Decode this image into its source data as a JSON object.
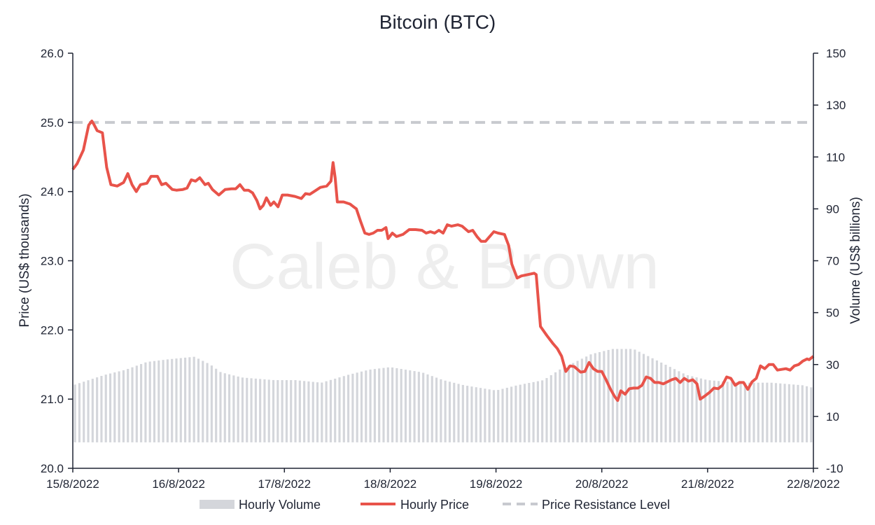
{
  "chart_data": {
    "type": "line",
    "title": "Bitcoin (BTC)",
    "watermark": "Caleb & Brown",
    "ylabel": "Price (US$ thousands)",
    "y2label": "Volume (US$ billions)",
    "xlabel": "",
    "x_ticks": [
      "15/8/2022",
      "16/8/2022",
      "17/8/2022",
      "18/8/2022",
      "19/8/2022",
      "20/8/2022",
      "21/8/2022",
      "22/8/2022"
    ],
    "y_ticks": [
      "20.0",
      "21.0",
      "22.0",
      "23.0",
      "24.0",
      "25.0",
      "26.0"
    ],
    "y2_ticks": [
      "-10",
      "10",
      "30",
      "50",
      "70",
      "90",
      "110",
      "130",
      "150"
    ],
    "ylim": [
      20.0,
      26.0
    ],
    "y2lim": [
      -10,
      150
    ],
    "xlim_days": [
      0,
      7
    ],
    "legend_position": "bottom",
    "grid": false,
    "colors": {
      "price": "#e8534a",
      "volume": "#d4d6db",
      "resistance": "#c8cacf",
      "text": "#1f2433",
      "axis": "#1f2433"
    },
    "series": [
      {
        "name": "Hourly Price",
        "kind": "line",
        "points": [
          [
            0.0,
            24.32
          ],
          [
            0.04,
            24.4
          ],
          [
            0.1,
            24.6
          ],
          [
            0.15,
            24.96
          ],
          [
            0.18,
            25.02
          ],
          [
            0.2,
            24.97
          ],
          [
            0.23,
            24.88
          ],
          [
            0.28,
            24.85
          ],
          [
            0.32,
            24.35
          ],
          [
            0.36,
            24.1
          ],
          [
            0.42,
            24.08
          ],
          [
            0.48,
            24.13
          ],
          [
            0.52,
            24.26
          ],
          [
            0.56,
            24.1
          ],
          [
            0.6,
            24.0
          ],
          [
            0.64,
            24.1
          ],
          [
            0.7,
            24.12
          ],
          [
            0.74,
            24.22
          ],
          [
            0.8,
            24.22
          ],
          [
            0.84,
            24.1
          ],
          [
            0.88,
            24.12
          ],
          [
            0.94,
            24.03
          ],
          [
            0.98,
            24.02
          ],
          [
            1.04,
            24.03
          ],
          [
            1.08,
            24.05
          ],
          [
            1.12,
            24.17
          ],
          [
            1.16,
            24.15
          ],
          [
            1.2,
            24.2
          ],
          [
            1.25,
            24.1
          ],
          [
            1.28,
            24.12
          ],
          [
            1.32,
            24.03
          ],
          [
            1.38,
            23.95
          ],
          [
            1.44,
            24.03
          ],
          [
            1.5,
            24.04
          ],
          [
            1.54,
            24.04
          ],
          [
            1.58,
            24.1
          ],
          [
            1.62,
            24.02
          ],
          [
            1.66,
            24.02
          ],
          [
            1.7,
            23.98
          ],
          [
            1.74,
            23.87
          ],
          [
            1.77,
            23.75
          ],
          [
            1.8,
            23.8
          ],
          [
            1.83,
            23.91
          ],
          [
            1.87,
            23.8
          ],
          [
            1.9,
            23.85
          ],
          [
            1.94,
            23.78
          ],
          [
            1.98,
            23.95
          ],
          [
            2.03,
            23.95
          ],
          [
            2.1,
            23.93
          ],
          [
            2.16,
            23.9
          ],
          [
            2.2,
            23.97
          ],
          [
            2.24,
            23.96
          ],
          [
            2.28,
            24.0
          ],
          [
            2.34,
            24.06
          ],
          [
            2.4,
            24.08
          ],
          [
            2.44,
            24.15
          ],
          [
            2.46,
            24.42
          ],
          [
            2.48,
            24.2
          ],
          [
            2.5,
            23.85
          ],
          [
            2.56,
            23.85
          ],
          [
            2.62,
            23.82
          ],
          [
            2.68,
            23.75
          ],
          [
            2.72,
            23.57
          ],
          [
            2.76,
            23.4
          ],
          [
            2.8,
            23.38
          ],
          [
            2.84,
            23.4
          ],
          [
            2.88,
            23.44
          ],
          [
            2.92,
            23.44
          ],
          [
            2.96,
            23.48
          ],
          [
            2.98,
            23.32
          ],
          [
            3.02,
            23.4
          ],
          [
            3.06,
            23.35
          ],
          [
            3.12,
            23.38
          ],
          [
            3.18,
            23.45
          ],
          [
            3.24,
            23.45
          ],
          [
            3.3,
            23.44
          ],
          [
            3.34,
            23.4
          ],
          [
            3.38,
            23.42
          ],
          [
            3.42,
            23.4
          ],
          [
            3.46,
            23.44
          ],
          [
            3.5,
            23.4
          ],
          [
            3.54,
            23.52
          ],
          [
            3.58,
            23.5
          ],
          [
            3.64,
            23.52
          ],
          [
            3.68,
            23.5
          ],
          [
            3.74,
            23.42
          ],
          [
            3.78,
            23.44
          ],
          [
            3.82,
            23.35
          ],
          [
            3.86,
            23.28
          ],
          [
            3.9,
            23.28
          ],
          [
            3.94,
            23.35
          ],
          [
            3.98,
            23.42
          ],
          [
            4.02,
            23.4
          ],
          [
            4.08,
            23.38
          ],
          [
            4.12,
            23.22
          ],
          [
            4.15,
            22.95
          ],
          [
            4.2,
            22.75
          ],
          [
            4.24,
            22.78
          ],
          [
            4.3,
            22.8
          ],
          [
            4.36,
            22.82
          ],
          [
            4.38,
            22.8
          ],
          [
            4.42,
            22.05
          ],
          [
            4.48,
            21.92
          ],
          [
            4.54,
            21.8
          ],
          [
            4.58,
            21.73
          ],
          [
            4.62,
            21.62
          ],
          [
            4.66,
            21.4
          ],
          [
            4.7,
            21.48
          ],
          [
            4.74,
            21.47
          ],
          [
            4.8,
            21.39
          ],
          [
            4.84,
            21.4
          ],
          [
            4.88,
            21.53
          ],
          [
            4.92,
            21.44
          ],
          [
            4.96,
            21.4
          ],
          [
            5.0,
            21.4
          ],
          [
            5.04,
            21.28
          ],
          [
            5.08,
            21.15
          ],
          [
            5.12,
            21.04
          ],
          [
            5.15,
            20.98
          ],
          [
            5.18,
            21.12
          ],
          [
            5.22,
            21.07
          ],
          [
            5.26,
            21.15
          ],
          [
            5.3,
            21.16
          ],
          [
            5.34,
            21.16
          ],
          [
            5.38,
            21.2
          ],
          [
            5.42,
            21.32
          ],
          [
            5.46,
            21.3
          ],
          [
            5.5,
            21.24
          ],
          [
            5.54,
            21.24
          ],
          [
            5.58,
            21.22
          ],
          [
            5.62,
            21.25
          ],
          [
            5.66,
            21.28
          ],
          [
            5.7,
            21.3
          ],
          [
            5.74,
            21.24
          ],
          [
            5.78,
            21.3
          ],
          [
            5.82,
            21.26
          ],
          [
            5.86,
            21.28
          ],
          [
            5.9,
            21.22
          ],
          [
            5.93,
            21.0
          ],
          [
            5.97,
            21.04
          ],
          [
            6.02,
            21.1
          ],
          [
            6.06,
            21.16
          ],
          [
            6.1,
            21.15
          ],
          [
            6.14,
            21.2
          ],
          [
            6.18,
            21.32
          ],
          [
            6.22,
            21.3
          ],
          [
            6.26,
            21.2
          ],
          [
            6.3,
            21.24
          ],
          [
            6.34,
            21.24
          ],
          [
            6.38,
            21.14
          ],
          [
            6.42,
            21.25
          ],
          [
            6.46,
            21.3
          ],
          [
            6.5,
            21.48
          ],
          [
            6.54,
            21.44
          ],
          [
            6.58,
            21.5
          ],
          [
            6.62,
            21.5
          ],
          [
            6.66,
            21.42
          ],
          [
            6.7,
            21.43
          ],
          [
            6.74,
            21.44
          ],
          [
            6.78,
            21.42
          ],
          [
            6.82,
            21.48
          ],
          [
            6.86,
            21.5
          ],
          [
            6.9,
            21.55
          ],
          [
            6.94,
            21.58
          ],
          [
            6.96,
            21.57
          ],
          [
            7.0,
            21.62
          ]
        ]
      },
      {
        "name": "Hourly Volume",
        "kind": "bar",
        "bar_count": 168,
        "envelope": [
          [
            0,
            22
          ],
          [
            0.3,
            26
          ],
          [
            0.5,
            28
          ],
          [
            0.7,
            31
          ],
          [
            0.9,
            32
          ],
          [
            1.15,
            33
          ],
          [
            1.3,
            30
          ],
          [
            1.4,
            27
          ],
          [
            1.6,
            25
          ],
          [
            1.9,
            24
          ],
          [
            2.1,
            24
          ],
          [
            2.35,
            23
          ],
          [
            2.6,
            26
          ],
          [
            2.8,
            28
          ],
          [
            3.0,
            29
          ],
          [
            3.3,
            27
          ],
          [
            3.5,
            24
          ],
          [
            3.7,
            22
          ],
          [
            4.0,
            20
          ],
          [
            4.2,
            22
          ],
          [
            4.45,
            24
          ],
          [
            4.6,
            28
          ],
          [
            4.9,
            34
          ],
          [
            5.1,
            36
          ],
          [
            5.3,
            36
          ],
          [
            5.5,
            32
          ],
          [
            5.8,
            26
          ],
          [
            6.0,
            24
          ],
          [
            6.3,
            23
          ],
          [
            6.6,
            23
          ],
          [
            6.9,
            22
          ],
          [
            7.0,
            21
          ]
        ]
      },
      {
        "name": "Price Resistance Level",
        "kind": "hline",
        "value": 25.0
      }
    ]
  },
  "legend": {
    "volume": "Hourly Volume",
    "price": "Hourly Price",
    "resistance": "Price Resistance Level"
  }
}
